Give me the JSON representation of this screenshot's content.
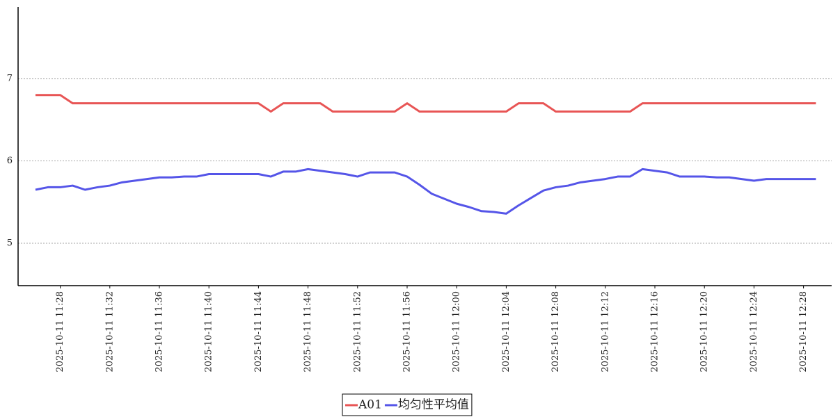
{
  "chart_data": {
    "type": "line",
    "x": [
      "2025-10-11 11:26",
      "2025-10-11 11:27",
      "2025-10-11 11:28",
      "2025-10-11 11:29",
      "2025-10-11 11:30",
      "2025-10-11 11:31",
      "2025-10-11 11:32",
      "2025-10-11 11:33",
      "2025-10-11 11:34",
      "2025-10-11 11:35",
      "2025-10-11 11:36",
      "2025-10-11 11:37",
      "2025-10-11 11:38",
      "2025-10-11 11:39",
      "2025-10-11 11:40",
      "2025-10-11 11:41",
      "2025-10-11 11:42",
      "2025-10-11 11:43",
      "2025-10-11 11:44",
      "2025-10-11 11:45",
      "2025-10-11 11:46",
      "2025-10-11 11:47",
      "2025-10-11 11:48",
      "2025-10-11 11:49",
      "2025-10-11 11:50",
      "2025-10-11 11:51",
      "2025-10-11 11:52",
      "2025-10-11 11:53",
      "2025-10-11 11:54",
      "2025-10-11 11:55",
      "2025-10-11 11:56",
      "2025-10-11 11:57",
      "2025-10-11 11:58",
      "2025-10-11 11:59",
      "2025-10-11 12:00",
      "2025-10-11 12:01",
      "2025-10-11 12:02",
      "2025-10-11 12:03",
      "2025-10-11 12:04",
      "2025-10-11 12:05",
      "2025-10-11 12:06",
      "2025-10-11 12:07",
      "2025-10-11 12:08",
      "2025-10-11 12:09",
      "2025-10-11 12:10",
      "2025-10-11 12:11",
      "2025-10-11 12:12",
      "2025-10-11 12:13",
      "2025-10-11 12:14",
      "2025-10-11 12:15",
      "2025-10-11 12:16",
      "2025-10-11 12:17",
      "2025-10-11 12:18",
      "2025-10-11 12:19",
      "2025-10-11 12:20",
      "2025-10-11 12:21",
      "2025-10-11 12:22",
      "2025-10-11 12:23",
      "2025-10-11 12:24",
      "2025-10-11 12:25",
      "2025-10-11 12:26",
      "2025-10-11 12:27",
      "2025-10-11 12:28",
      "2025-10-11 12:29"
    ],
    "xticks": [
      "2025-10-11 11:28",
      "2025-10-11 11:32",
      "2025-10-11 11:36",
      "2025-10-11 11:40",
      "2025-10-11 11:44",
      "2025-10-11 11:48",
      "2025-10-11 11:52",
      "2025-10-11 11:56",
      "2025-10-11 12:00",
      "2025-10-11 12:04",
      "2025-10-11 12:08",
      "2025-10-11 12:12",
      "2025-10-11 12:16",
      "2025-10-11 12:20",
      "2025-10-11 12:24",
      "2025-10-11 12:28"
    ],
    "series": [
      {
        "name": "A01",
        "color": "#e85555",
        "values": [
          6.8,
          6.8,
          6.8,
          6.7,
          6.7,
          6.7,
          6.7,
          6.7,
          6.7,
          6.7,
          6.7,
          6.7,
          6.7,
          6.7,
          6.7,
          6.7,
          6.7,
          6.7,
          6.7,
          6.6,
          6.7,
          6.7,
          6.7,
          6.7,
          6.6,
          6.6,
          6.6,
          6.6,
          6.6,
          6.6,
          6.7,
          6.6,
          6.6,
          6.6,
          6.6,
          6.6,
          6.6,
          6.6,
          6.6,
          6.7,
          6.7,
          6.7,
          6.6,
          6.6,
          6.6,
          6.6,
          6.6,
          6.6,
          6.6,
          6.7,
          6.7,
          6.7,
          6.7,
          6.7,
          6.7,
          6.7,
          6.7,
          6.7,
          6.7,
          6.7,
          6.7,
          6.7,
          6.7,
          6.7
        ]
      },
      {
        "name": "均匀性平均值",
        "color": "#5555e8",
        "values": [
          5.65,
          5.68,
          5.68,
          5.7,
          5.65,
          5.68,
          5.7,
          5.74,
          5.76,
          5.78,
          5.8,
          5.8,
          5.81,
          5.81,
          5.84,
          5.84,
          5.84,
          5.84,
          5.84,
          5.81,
          5.87,
          5.87,
          5.9,
          5.88,
          5.86,
          5.84,
          5.81,
          5.86,
          5.86,
          5.86,
          5.81,
          5.71,
          5.6,
          5.54,
          5.48,
          5.44,
          5.39,
          5.38,
          5.36,
          5.46,
          5.55,
          5.64,
          5.68,
          5.7,
          5.74,
          5.76,
          5.78,
          5.81,
          5.81,
          5.9,
          5.88,
          5.86,
          5.81,
          5.81,
          5.81,
          5.8,
          5.8,
          5.78,
          5.76,
          5.78,
          5.78,
          5.78,
          5.78,
          5.78
        ]
      }
    ],
    "ylim": [
      4.485,
      7.87
    ],
    "yticks": [
      5,
      6,
      7
    ],
    "grid": true,
    "legend": "bottom"
  }
}
